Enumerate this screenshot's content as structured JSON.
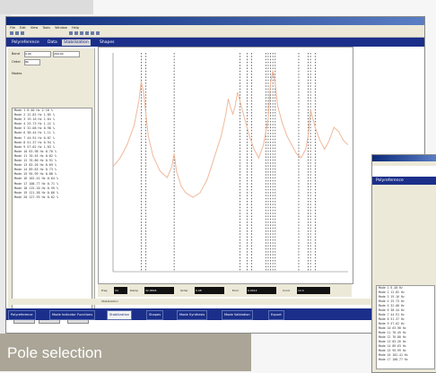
{
  "window": {
    "title": "",
    "menu": [
      "File",
      "Edit",
      "View",
      "Tools",
      "Window",
      "Help"
    ]
  },
  "tabs": [
    {
      "label": "Polyreference",
      "active": false
    },
    {
      "label": "Data",
      "active": false
    },
    {
      "label": "Stabilization",
      "active": true
    },
    {
      "label": "Shapes",
      "active": false
    }
  ],
  "left_panel": {
    "band_label": "Band",
    "band_values": [
      "0.00",
      "200.00"
    ],
    "order_label": "Order",
    "order_value": "80",
    "modes_label": "Modes",
    "mode_list": [
      "Mode 1  6.40 Hz  2.10 %",
      "Mode 2  12.82 Hz  1.85 %",
      "Mode 3  19.16 Hz  1.64 %",
      "Mode 4  25.73 Hz  1.22 %",
      "Mode 5  32.08 Hz  0.98 %",
      "Mode 6  38.44 Hz  1.11 %",
      "Mode 7  44.91 Hz  0.87 %",
      "Mode 8  51.37 Hz  0.94 %",
      "Mode 9  57.62 Hz  1.03 %",
      "Mode 10  63.98 Hz  0.76 %",
      "Mode 11  70.45 Hz  0.82 %",
      "Mode 12  76.80 Hz  0.91 %",
      "Mode 13  83.26 Hz  0.69 %",
      "Mode 14  89.63 Hz  0.73 %",
      "Mode 15  95.99 Hz  0.88 %",
      "Mode 16  102.41 Hz  0.64 %",
      "Mode 17  108.77 Hz  0.71 %",
      "Mode 18  115.20 Hz  0.59 %",
      "Mode 19  121.58 Hz  0.66 %",
      "Mode 20  127.93 Hz  0.62 %"
    ],
    "buttons": [
      "Select",
      "Unselect",
      "Clear"
    ]
  },
  "bottom_bar": {
    "labels": [
      "Freq",
      "Damp",
      "Order",
      "Error",
      "Cond"
    ],
    "values": [
      "34",
      "32.0816",
      "0.98",
      "0.0012",
      "12.4"
    ]
  },
  "status": {
    "text": "Stabilization"
  },
  "steps": [
    {
      "label": "Polyreference",
      "active": false
    },
    {
      "label": "Mode Indicator Functions",
      "active": false
    },
    {
      "label": "Stabilization",
      "active": true
    },
    {
      "label": "Shapes",
      "active": false
    },
    {
      "label": "Mode Synthesis",
      "active": false
    },
    {
      "label": "Mode Validation",
      "active": false
    },
    {
      "label": "Export",
      "active": false
    }
  ],
  "second_window": {
    "tab": "Polyreference",
    "list": [
      "Mode 1  6.40 Hz",
      "Mode 2  12.82 Hz",
      "Mode 3  19.16 Hz",
      "Mode 4  25.73 Hz",
      "Mode 5  32.08 Hz",
      "Mode 6  38.44 Hz",
      "Mode 7  44.91 Hz",
      "Mode 8  51.37 Hz",
      "Mode 9  57.62 Hz",
      "Mode 10  63.98 Hz",
      "Mode 11  70.45 Hz",
      "Mode 12  76.80 Hz",
      "Mode 13  83.26 Hz",
      "Mode 14  89.63 Hz",
      "Mode 15  95.99 Hz",
      "Mode 16  102.41 Hz",
      "Mode 17  108.77 Hz"
    ]
  },
  "caption": "Pole selection",
  "colors": {
    "title_bar": "#0b2a7a",
    "tab_bar": "#1b2f8a",
    "frf_curve": "#f0b89a",
    "pole_marker": "#2a2a2a",
    "caption_bg": "#aaa596"
  },
  "chart_data": {
    "type": "line",
    "title": "",
    "xlabel": "",
    "ylabel": "",
    "xlim": [
      0,
      100
    ],
    "ylim": [
      0,
      100
    ],
    "series": [
      {
        "x": [
          0,
          3,
          6,
          9,
          11,
          12,
          13,
          14,
          15,
          17,
          20,
          23,
          25,
          26,
          27,
          29,
          31,
          34,
          37,
          40,
          43,
          46,
          48,
          49,
          50,
          51,
          52,
          53,
          54,
          56,
          58,
          60,
          62,
          64,
          66,
          67,
          68,
          69,
          70,
          72,
          74,
          76,
          78,
          80,
          82,
          83,
          84,
          86,
          88,
          90,
          92,
          94,
          96,
          98,
          100
        ],
        "y": [
          48,
          52,
          58,
          67,
          78,
          87,
          82,
          72,
          62,
          53,
          46,
          43,
          48,
          54,
          46,
          39,
          36,
          34,
          36,
          42,
          52,
          62,
          72,
          79,
          75,
          72,
          76,
          82,
          78,
          70,
          62,
          56,
          52,
          58,
          70,
          86,
          92,
          86,
          76,
          68,
          62,
          58,
          54,
          52,
          56,
          62,
          74,
          66,
          60,
          56,
          60,
          66,
          64,
          60,
          58
        ]
      }
    ],
    "stable_pole_frequencies": [
      12,
      14,
      26,
      54,
      57,
      59,
      65,
      66,
      67,
      68,
      69,
      79,
      83,
      84,
      86
    ]
  }
}
